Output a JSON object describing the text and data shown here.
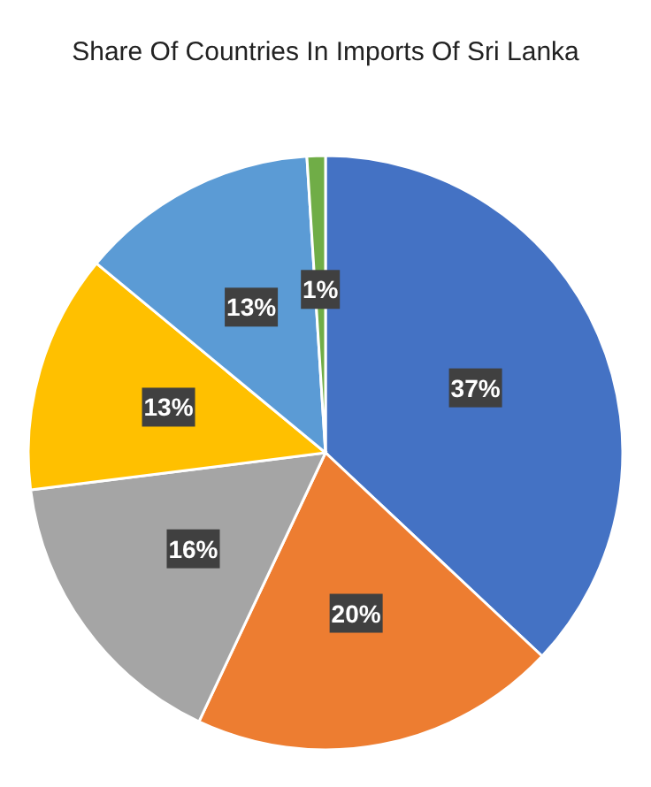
{
  "chart_data": {
    "type": "pie",
    "title": "Share Of Countries In Imports Of Sri Lanka",
    "categories": [
      null,
      null,
      null,
      null,
      null,
      null
    ],
    "values": [
      37,
      20,
      16,
      13,
      13,
      1
    ],
    "value_labels": [
      "37%",
      "20%",
      "16%",
      "13%",
      "13%",
      "1%"
    ],
    "colors": [
      "#4472c4",
      "#ed7d31",
      "#a5a5a5",
      "#ffc000",
      "#5b9bd5",
      "#70ad47"
    ]
  }
}
